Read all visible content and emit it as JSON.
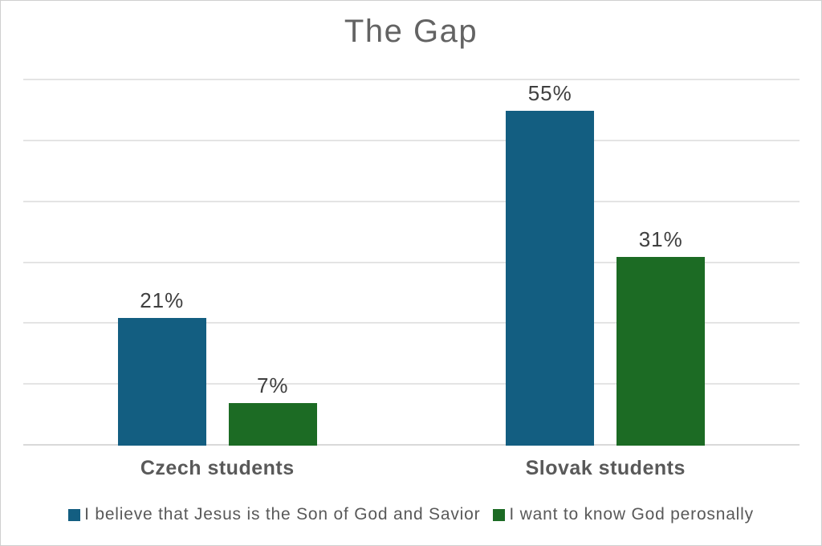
{
  "frame": {
    "background_color": "#ffffff",
    "border_color": "#cfcfcf"
  },
  "colors": {
    "series_blue": "#135E81",
    "series_green": "#1C6B24",
    "title_text": "#636363",
    "value_label_text": "#3f3f3f",
    "category_text": "#595959",
    "legend_text": "#595959",
    "gridline": "#e4e4e4",
    "axis_line": "#d9d9d9"
  },
  "chart_data": {
    "type": "bar",
    "title": "The Gap",
    "categories": [
      "Czech students",
      "Slovak students"
    ],
    "series": [
      {
        "name": "I believe that Jesus is the Son of God and Savior",
        "color": "#135E81",
        "values": [
          21,
          55
        ],
        "labels": [
          "21%",
          "55%"
        ]
      },
      {
        "name": "I want to know God perosnally",
        "color": "#1C6B24",
        "values": [
          7,
          31
        ],
        "labels": [
          "7%",
          "31%"
        ]
      }
    ],
    "ylim": [
      0,
      60
    ],
    "ytick_step": 10,
    "grid": true,
    "y_axis_labels_visible": false,
    "data_labels": true,
    "legend_position": "bottom"
  }
}
